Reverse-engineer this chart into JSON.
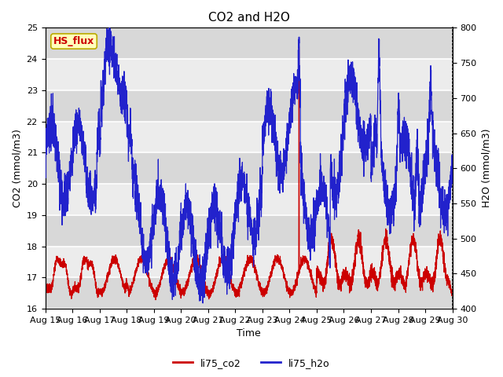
{
  "title": "CO2 and H2O",
  "xlabel": "Time",
  "ylabel_left": "CO2 (mmol/m3)",
  "ylabel_right": "H2O (mmol/m3)",
  "ylim_left": [
    16.0,
    25.0
  ],
  "ylim_right": [
    400,
    800
  ],
  "xtick_labels": [
    "Aug 15",
    "Aug 16",
    "Aug 17",
    "Aug 18",
    "Aug 19",
    "Aug 20",
    "Aug 21",
    "Aug 22",
    "Aug 23",
    "Aug 24",
    "Aug 25",
    "Aug 26",
    "Aug 27",
    "Aug 28",
    "Aug 29",
    "Aug 30"
  ],
  "legend_labels": [
    "li75_co2",
    "li75_h2o"
  ],
  "legend_colors": [
    "#cc0000",
    "#2222cc"
  ],
  "line_color_co2": "#cc0000",
  "line_color_h2o": "#2222cc",
  "annotation_text": "HS_flux",
  "annotation_bg": "#ffffbb",
  "annotation_border": "#bbaa00",
  "annotation_text_color": "#cc0000",
  "background_color": "#ffffff",
  "plot_bg_color": "#ececec",
  "band_color_dark": "#d8d8d8",
  "band_color_light": "#ececec",
  "grid_color": "#ffffff",
  "title_fontsize": 11,
  "axis_fontsize": 9,
  "tick_fontsize": 8,
  "legend_fontsize": 9,
  "yticks_left": [
    16.0,
    17.0,
    18.0,
    19.0,
    20.0,
    21.0,
    22.0,
    23.0,
    24.0,
    25.0
  ],
  "yticks_right": [
    400,
    450,
    500,
    550,
    600,
    650,
    700,
    750,
    800
  ]
}
